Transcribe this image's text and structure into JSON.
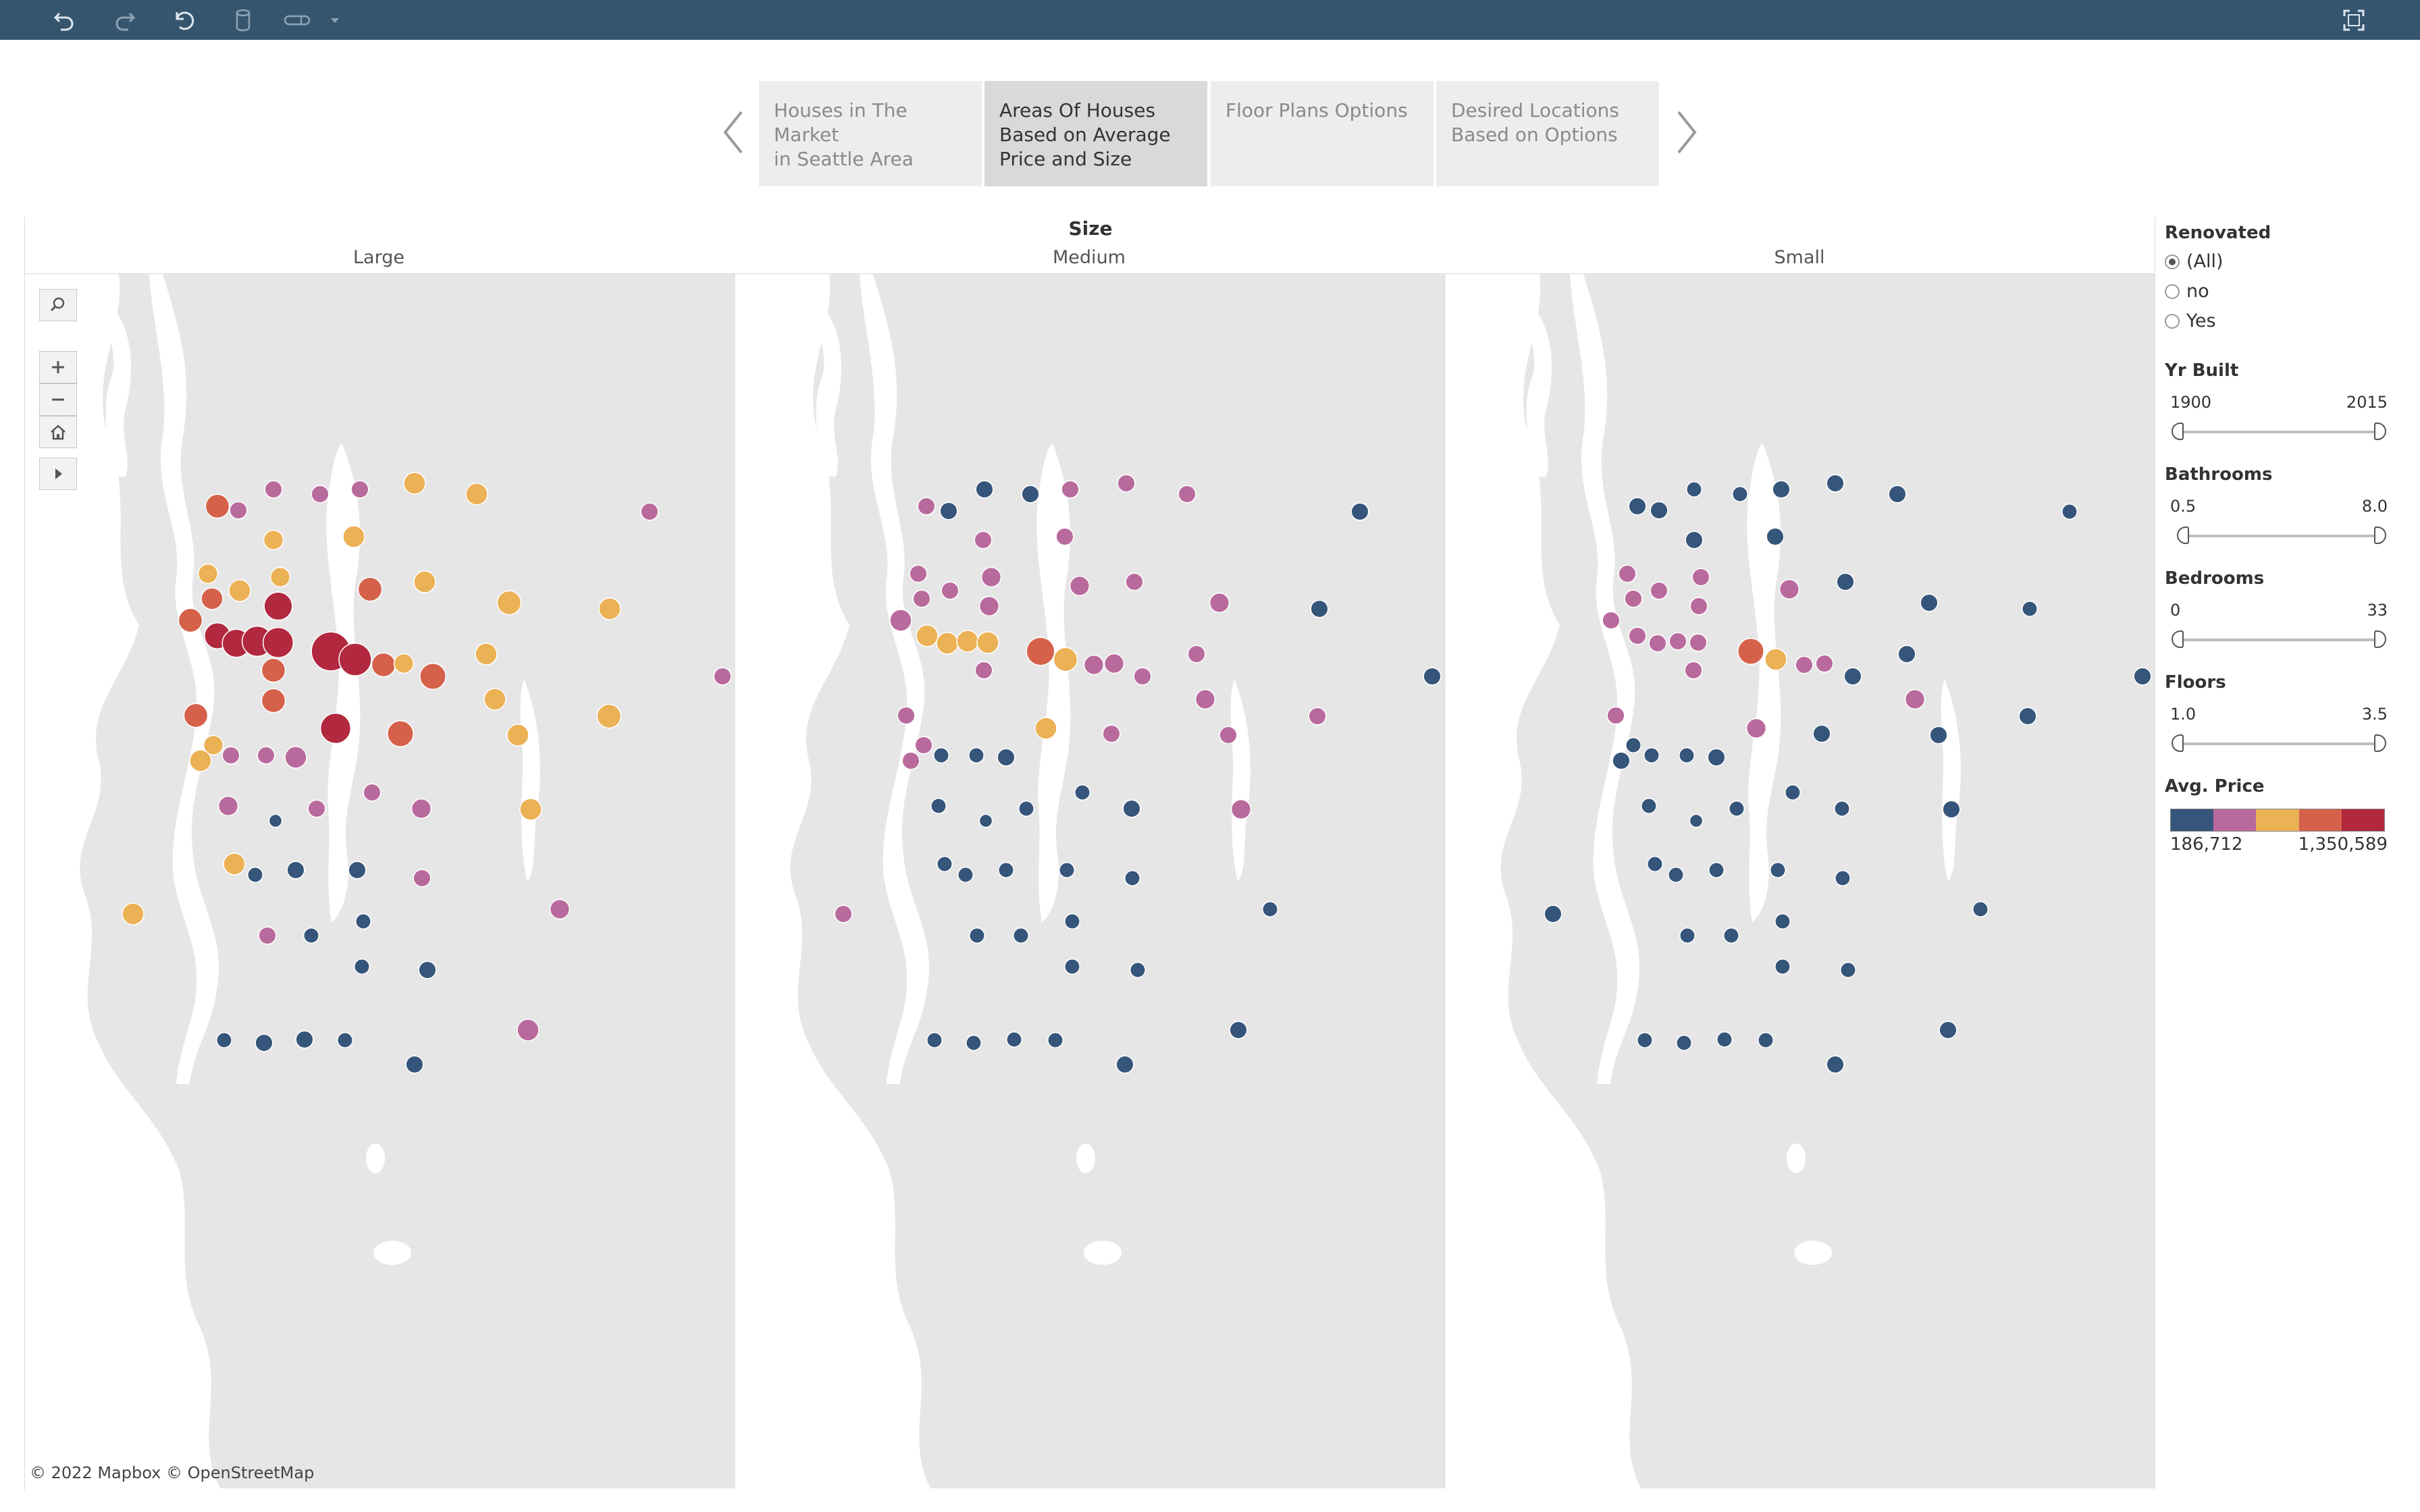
{
  "toolbar": {
    "icons": [
      "undo-icon",
      "redo-icon",
      "revert-icon",
      "datasource-icon",
      "pause-updates-icon",
      "dropdown-arrow-icon",
      "fullscreen-icon"
    ]
  },
  "story": {
    "tabs": [
      {
        "line1": "Houses in The Market",
        "line2": "in Seattle Area",
        "line3": "",
        "active": false
      },
      {
        "line1": "Areas Of Houses",
        "line2": "Based on Average",
        "line3": "Price and Size",
        "active": true
      },
      {
        "line1": "Floor Plans Options",
        "line2": "",
        "line3": "",
        "active": false
      },
      {
        "line1": "Desired Locations",
        "line2": "Based on Options",
        "line3": "",
        "active": false
      }
    ]
  },
  "viz": {
    "column_header": "Size",
    "panels": [
      "Large",
      "Medium",
      "Small"
    ],
    "attribution": "© 2022 Mapbox  © OpenStreetMap"
  },
  "filters": {
    "renovated": {
      "title": "Renovated",
      "options": [
        "(All)",
        "no",
        "Yes"
      ],
      "selected": "(All)"
    },
    "yr_built": {
      "title": "Yr Built",
      "min": "1900",
      "max": "2015"
    },
    "bathrooms": {
      "title": "Bathrooms",
      "min": "0.5",
      "max": "8.0"
    },
    "bedrooms": {
      "title": "Bedrooms",
      "min": "0",
      "max": "33"
    },
    "floors": {
      "title": "Floors",
      "min": "1.0",
      "max": "3.5"
    },
    "avg_price": {
      "title": "Avg. Price",
      "min": "186,712",
      "max": "1,350,589",
      "colors": [
        "#35557a",
        "#b96a9d",
        "#ebb155",
        "#d5614a",
        "#b2283f"
      ]
    }
  },
  "chart_data": {
    "type": "scatter",
    "title": "Size",
    "facets": [
      "Large",
      "Medium",
      "Small"
    ],
    "color_scale": {
      "min": 186712,
      "max": 1350589,
      "colors": [
        "#35557a",
        "#b96a9d",
        "#ebb155",
        "#d5614a",
        "#b2283f"
      ]
    },
    "points": {
      "Large": [
        [
          322,
          750,
          "O",
          11
        ],
        [
          353,
          756,
          "P",
          8
        ],
        [
          405,
          725,
          "P",
          8
        ],
        [
          474,
          732,
          "P",
          8
        ],
        [
          533,
          725,
          "P",
          8
        ],
        [
          614,
          716,
          "Y",
          10
        ],
        [
          706,
          732,
          "Y",
          10
        ],
        [
          962,
          758,
          "P",
          8
        ],
        [
          405,
          800,
          "Y",
          9
        ],
        [
          524,
          795,
          "Y",
          10
        ],
        [
          308,
          850,
          "Y",
          9
        ],
        [
          355,
          875,
          "Y",
          10
        ],
        [
          415,
          855,
          "Y",
          9
        ],
        [
          548,
          873,
          "O",
          11
        ],
        [
          629,
          862,
          "Y",
          10
        ],
        [
          314,
          887,
          "O",
          10
        ],
        [
          412,
          898,
          "R",
          13
        ],
        [
          754,
          893,
          "Y",
          11
        ],
        [
          903,
          902,
          "Y",
          10
        ],
        [
          282,
          919,
          "O",
          11
        ],
        [
          322,
          942,
          "R",
          12
        ],
        [
          350,
          953,
          "R",
          13
        ],
        [
          381,
          950,
          "R",
          14
        ],
        [
          412,
          952,
          "R",
          14
        ],
        [
          490,
          965,
          "R",
          18
        ],
        [
          526,
          977,
          "R",
          15
        ],
        [
          568,
          985,
          "O",
          11
        ],
        [
          598,
          983,
          "Y",
          9
        ],
        [
          641,
          1002,
          "O",
          12
        ],
        [
          720,
          969,
          "Y",
          10
        ],
        [
          405,
          993,
          "O",
          11
        ],
        [
          1070,
          1002,
          "P",
          8
        ],
        [
          405,
          1038,
          "O",
          11
        ],
        [
          733,
          1036,
          "Y",
          10
        ],
        [
          290,
          1060,
          "O",
          11
        ],
        [
          497,
          1079,
          "R",
          14
        ],
        [
          593,
          1087,
          "O",
          12
        ],
        [
          767,
          1089,
          "Y",
          10
        ],
        [
          902,
          1061,
          "Y",
          11
        ],
        [
          316,
          1104,
          "Y",
          9
        ],
        [
          342,
          1119,
          "P",
          8
        ],
        [
          297,
          1127,
          "Y",
          10
        ],
        [
          394,
          1119,
          "P",
          8
        ],
        [
          438,
          1122,
          "P",
          10
        ],
        [
          551,
          1174,
          "P",
          8
        ],
        [
          338,
          1194,
          "P",
          9
        ],
        [
          408,
          1216,
          "D",
          6
        ],
        [
          469,
          1198,
          "P",
          8
        ],
        [
          624,
          1198,
          "P",
          9
        ],
        [
          786,
          1199,
          "Y",
          10
        ],
        [
          347,
          1280,
          "Y",
          10
        ],
        [
          378,
          1296,
          "D",
          7
        ],
        [
          438,
          1289,
          "D",
          8
        ],
        [
          529,
          1289,
          "D",
          8
        ],
        [
          625,
          1301,
          "P",
          8
        ],
        [
          197,
          1354,
          "Y",
          10
        ],
        [
          829,
          1347,
          "P",
          9
        ],
        [
          538,
          1365,
          "D",
          7
        ],
        [
          396,
          1386,
          "P",
          8
        ],
        [
          461,
          1386,
          "D",
          7
        ],
        [
          536,
          1432,
          "D",
          7
        ],
        [
          633,
          1437,
          "D",
          8
        ],
        [
          782,
          1526,
          "P",
          10
        ],
        [
          332,
          1541,
          "D",
          7
        ],
        [
          391,
          1545,
          "D",
          8
        ],
        [
          451,
          1540,
          "D",
          8
        ],
        [
          511,
          1541,
          "D",
          7
        ],
        [
          614,
          1577,
          "D",
          8
        ]
      ],
      "Medium": [
        [
          1458,
          725,
          "D",
          8
        ],
        [
          1372,
          750,
          "P",
          8
        ],
        [
          1405,
          757,
          "D",
          8
        ],
        [
          1526,
          732,
          "D",
          8
        ],
        [
          1585,
          725,
          "P",
          8
        ],
        [
          1668,
          716,
          "P",
          8
        ],
        [
          1758,
          732,
          "P",
          8
        ],
        [
          2014,
          758,
          "D",
          8
        ],
        [
          1456,
          800,
          "P",
          8
        ],
        [
          1577,
          795,
          "P",
          8
        ],
        [
          1360,
          850,
          "P",
          8
        ],
        [
          1407,
          875,
          "P",
          8
        ],
        [
          1468,
          855,
          "P",
          9
        ],
        [
          1599,
          868,
          "P",
          9
        ],
        [
          1680,
          862,
          "P",
          8
        ],
        [
          1365,
          887,
          "P",
          8
        ],
        [
          1465,
          898,
          "P",
          9
        ],
        [
          1806,
          893,
          "P",
          9
        ],
        [
          1954,
          902,
          "D",
          8
        ],
        [
          1334,
          919,
          "P",
          10
        ],
        [
          1373,
          942,
          "Y",
          10
        ],
        [
          1403,
          953,
          "Y",
          10
        ],
        [
          1433,
          950,
          "Y",
          10
        ],
        [
          1463,
          952,
          "Y",
          10
        ],
        [
          1541,
          965,
          "O",
          13
        ],
        [
          1578,
          977,
          "Y",
          11
        ],
        [
          1620,
          985,
          "P",
          9
        ],
        [
          1650,
          983,
          "P",
          9
        ],
        [
          1692,
          1002,
          "P",
          8
        ],
        [
          1772,
          969,
          "P",
          8
        ],
        [
          1457,
          993,
          "P",
          8
        ],
        [
          2121,
          1002,
          "D",
          8
        ],
        [
          1785,
          1036,
          "P",
          9
        ],
        [
          1342,
          1060,
          "P",
          8
        ],
        [
          1951,
          1061,
          "P",
          8
        ],
        [
          1549,
          1079,
          "Y",
          10
        ],
        [
          1646,
          1087,
          "P",
          8
        ],
        [
          1819,
          1089,
          "P",
          8
        ],
        [
          1368,
          1104,
          "P",
          8
        ],
        [
          1394,
          1119,
          "D",
          7
        ],
        [
          1349,
          1127,
          "P",
          8
        ],
        [
          1446,
          1119,
          "D",
          7
        ],
        [
          1490,
          1122,
          "D",
          8
        ],
        [
          1603,
          1174,
          "D",
          7
        ],
        [
          1390,
          1194,
          "D",
          7
        ],
        [
          1520,
          1198,
          "D",
          7
        ],
        [
          1676,
          1198,
          "D",
          8
        ],
        [
          1838,
          1199,
          "P",
          9
        ],
        [
          1460,
          1216,
          "D",
          6
        ],
        [
          1399,
          1280,
          "D",
          7
        ],
        [
          1430,
          1296,
          "D",
          7
        ],
        [
          1490,
          1289,
          "D",
          7
        ],
        [
          1580,
          1289,
          "D",
          7
        ],
        [
          1677,
          1301,
          "D",
          7
        ],
        [
          1249,
          1354,
          "P",
          8
        ],
        [
          1881,
          1347,
          "D",
          7
        ],
        [
          1588,
          1365,
          "D",
          7
        ],
        [
          1447,
          1386,
          "D",
          7
        ],
        [
          1512,
          1386,
          "D",
          7
        ],
        [
          1588,
          1432,
          "D",
          7
        ],
        [
          1685,
          1437,
          "D",
          7
        ],
        [
          1834,
          1526,
          "D",
          8
        ],
        [
          1384,
          1541,
          "D",
          7
        ],
        [
          1442,
          1545,
          "D",
          7
        ],
        [
          1502,
          1540,
          "D",
          7
        ],
        [
          1563,
          1541,
          "D",
          7
        ],
        [
          1666,
          1577,
          "D",
          8
        ]
      ],
      "Small": [
        [
          2425,
          750,
          "D",
          8
        ],
        [
          2457,
          756,
          "D",
          8
        ],
        [
          2509,
          725,
          "D",
          7
        ],
        [
          2577,
          732,
          "D",
          7
        ],
        [
          2638,
          725,
          "D",
          8
        ],
        [
          2718,
          716,
          "D",
          8
        ],
        [
          2810,
          732,
          "D",
          8
        ],
        [
          3065,
          758,
          "D",
          7
        ],
        [
          2509,
          800,
          "D",
          8
        ],
        [
          2629,
          795,
          "D",
          8
        ],
        [
          2410,
          850,
          "P",
          8
        ],
        [
          2457,
          875,
          "P",
          8
        ],
        [
          2519,
          855,
          "P",
          8
        ],
        [
          2650,
          873,
          "P",
          9
        ],
        [
          2733,
          862,
          "D",
          8
        ],
        [
          2419,
          887,
          "P",
          8
        ],
        [
          2516,
          898,
          "P",
          8
        ],
        [
          2857,
          893,
          "D",
          8
        ],
        [
          3006,
          902,
          "D",
          7
        ],
        [
          2386,
          919,
          "P",
          8
        ],
        [
          2425,
          942,
          "P",
          8
        ],
        [
          2455,
          953,
          "P",
          8
        ],
        [
          2485,
          950,
          "P",
          8
        ],
        [
          2515,
          952,
          "P",
          8
        ],
        [
          2593,
          965,
          "O",
          12
        ],
        [
          2630,
          977,
          "Y",
          10
        ],
        [
          2672,
          985,
          "P",
          8
        ],
        [
          2702,
          983,
          "P",
          8
        ],
        [
          2744,
          1002,
          "D",
          8
        ],
        [
          2824,
          969,
          "D",
          8
        ],
        [
          2508,
          993,
          "P",
          8
        ],
        [
          3173,
          1002,
          "D",
          8
        ],
        [
          2836,
          1036,
          "P",
          9
        ],
        [
          2393,
          1060,
          "P",
          8
        ],
        [
          3003,
          1061,
          "D",
          8
        ],
        [
          2601,
          1079,
          "P",
          9
        ],
        [
          2698,
          1087,
          "D",
          8
        ],
        [
          2871,
          1089,
          "D",
          8
        ],
        [
          2419,
          1104,
          "D",
          7
        ],
        [
          2446,
          1119,
          "D",
          7
        ],
        [
          2401,
          1127,
          "D",
          8
        ],
        [
          2498,
          1119,
          "D",
          7
        ],
        [
          2542,
          1122,
          "D",
          8
        ],
        [
          2655,
          1174,
          "D",
          7
        ],
        [
          2442,
          1194,
          "D",
          7
        ],
        [
          2572,
          1198,
          "D",
          7
        ],
        [
          2728,
          1198,
          "D",
          7
        ],
        [
          2890,
          1199,
          "D",
          8
        ],
        [
          2512,
          1216,
          "D",
          6
        ],
        [
          2451,
          1280,
          "D",
          7
        ],
        [
          2482,
          1296,
          "D",
          7
        ],
        [
          2542,
          1289,
          "D",
          7
        ],
        [
          2633,
          1289,
          "D",
          7
        ],
        [
          2729,
          1301,
          "D",
          7
        ],
        [
          2300,
          1354,
          "D",
          8
        ],
        [
          2933,
          1347,
          "D",
          7
        ],
        [
          2640,
          1365,
          "D",
          7
        ],
        [
          2499,
          1386,
          "D",
          7
        ],
        [
          2564,
          1386,
          "D",
          7
        ],
        [
          2640,
          1432,
          "D",
          7
        ],
        [
          2737,
          1437,
          "D",
          7
        ],
        [
          2885,
          1526,
          "D",
          8
        ],
        [
          2436,
          1541,
          "D",
          7
        ],
        [
          2494,
          1545,
          "D",
          7
        ],
        [
          2554,
          1540,
          "D",
          7
        ],
        [
          2615,
          1541,
          "D",
          7
        ],
        [
          2718,
          1577,
          "D",
          8
        ]
      ]
    }
  }
}
